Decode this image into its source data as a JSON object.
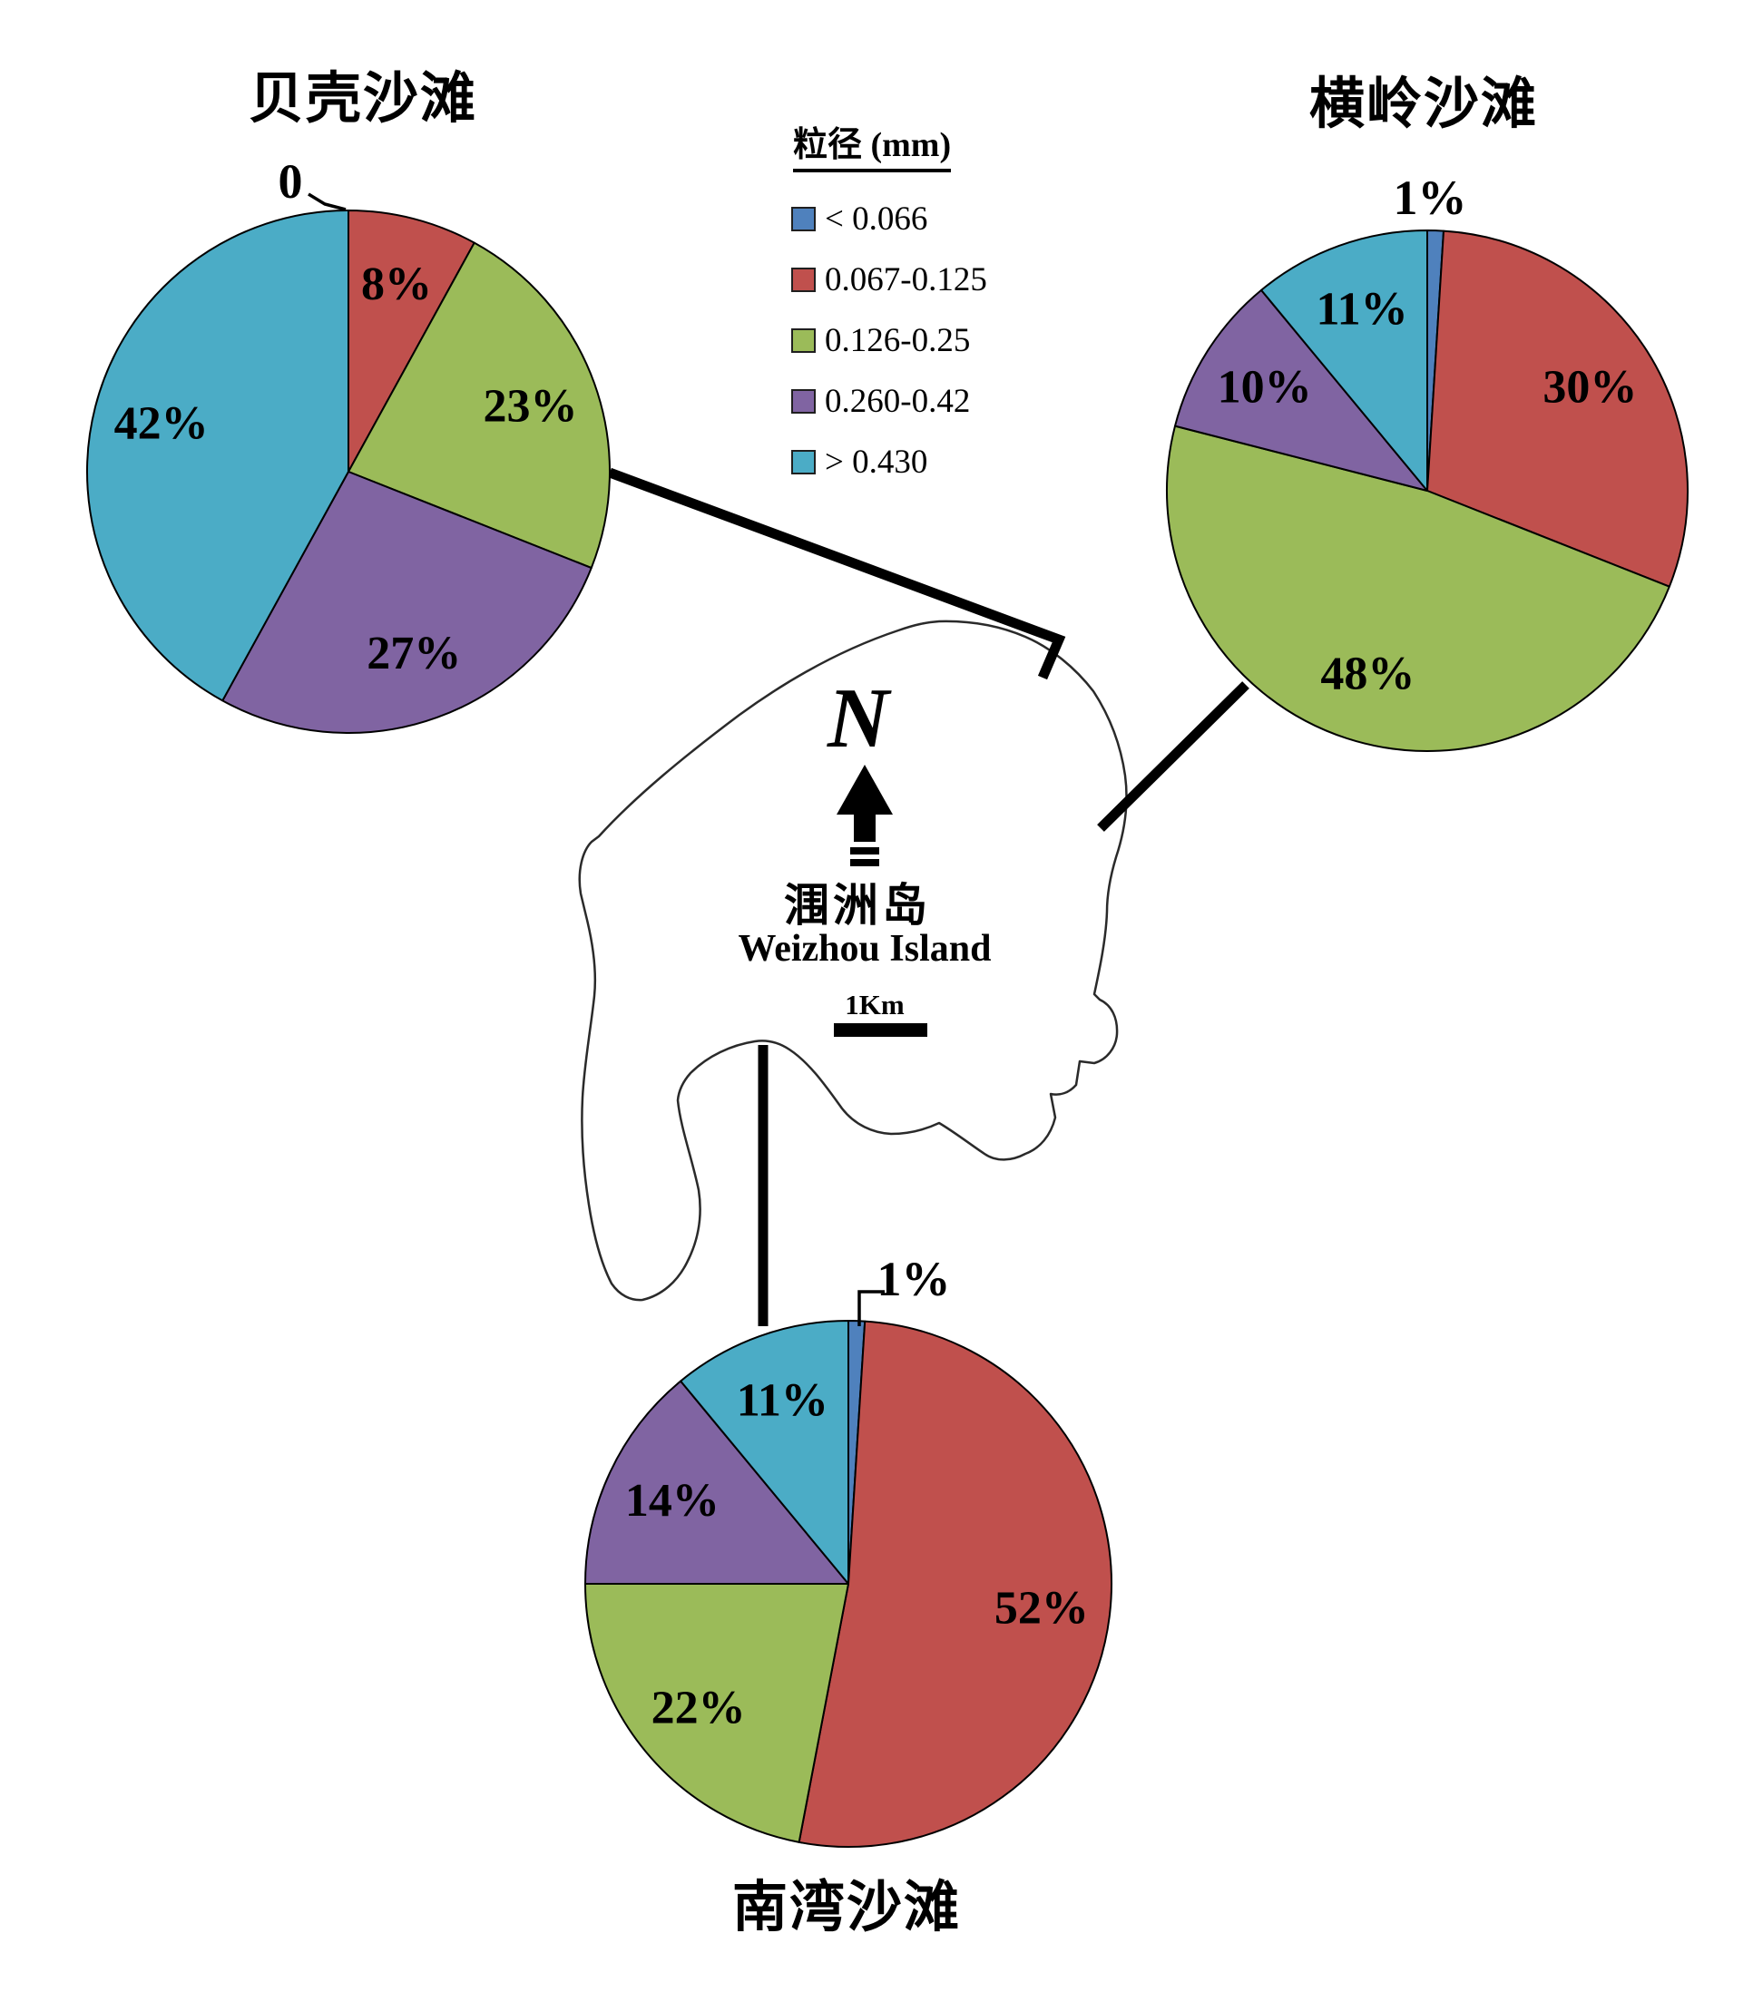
{
  "figure": {
    "legend": {
      "title": "粒径 (mm)",
      "items": [
        {
          "label": "< 0.066",
          "color": "#4F81BD"
        },
        {
          "label": "0.067-0.125",
          "color": "#C0504D"
        },
        {
          "label": "0.126-0.25",
          "color": "#9BBB59"
        },
        {
          "label": "0.260-0.42",
          "color": "#8064A2"
        },
        {
          "label": "> 0.430",
          "color": "#4BACC6"
        }
      ]
    },
    "map": {
      "compass_letter": "N",
      "island_name_zh": "涠洲岛",
      "island_name_en": "Weizhou Island",
      "scale_label": "1Km"
    }
  },
  "chart_data": [
    {
      "type": "pie",
      "title": "贝壳沙滩",
      "categories": [
        "< 0.066",
        "0.067-0.125",
        "0.126-0.25",
        "0.260-0.42",
        "> 0.430"
      ],
      "values": [
        0,
        8,
        23,
        27,
        42
      ],
      "labels": [
        "0",
        "8%",
        "23%",
        "27%",
        "42%"
      ],
      "colors": [
        "#4F81BD",
        "#C0504D",
        "#9BBB59",
        "#8064A2",
        "#4BACC6"
      ],
      "callout": {
        "index": 0,
        "placement": "left-diagonal"
      }
    },
    {
      "type": "pie",
      "title": "横岭沙滩",
      "categories": [
        "< 0.066",
        "0.067-0.125",
        "0.126-0.25",
        "0.260-0.42",
        "> 0.430"
      ],
      "values": [
        1,
        30,
        48,
        10,
        11
      ],
      "labels": [
        "1%",
        "30%",
        "48%",
        "10%",
        "11%"
      ],
      "colors": [
        "#4F81BD",
        "#C0504D",
        "#9BBB59",
        "#8064A2",
        "#4BACC6"
      ],
      "callout": {
        "index": 0,
        "placement": "above"
      }
    },
    {
      "type": "pie",
      "title": "南湾沙滩",
      "categories": [
        "< 0.066",
        "0.067-0.125",
        "0.126-0.25",
        "0.260-0.42",
        "> 0.430"
      ],
      "values": [
        1,
        52,
        22,
        14,
        11
      ],
      "labels": [
        "1%",
        "52%",
        "22%",
        "14%",
        "11%"
      ],
      "colors": [
        "#4F81BD",
        "#C0504D",
        "#9BBB59",
        "#8064A2",
        "#4BACC6"
      ],
      "callout": {
        "index": 0,
        "placement": "right-elbow"
      }
    }
  ]
}
